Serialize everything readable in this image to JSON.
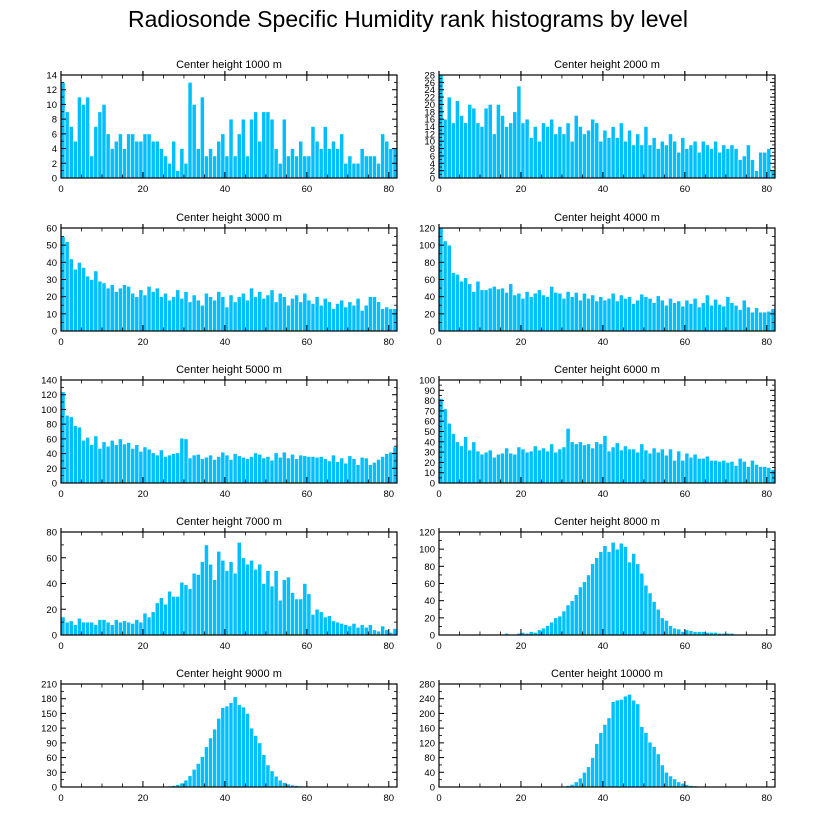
{
  "title": "Radiosonde Specific Humidity rank histograms by level",
  "bar_color": "#00bfff",
  "bar_edge_color": "#ffffff",
  "chart_data": [
    {
      "type": "bar",
      "title": "Center height 1000 m",
      "xlim": [
        0,
        82
      ],
      "ylim": [
        0,
        14
      ],
      "xticks": [
        0,
        20,
        40,
        60,
        80
      ],
      "yticks": [
        0,
        2,
        4,
        6,
        8,
        10,
        12,
        14
      ],
      "x_start": 0,
      "values": [
        13,
        9,
        7,
        5,
        11,
        10,
        11,
        3,
        7,
        9,
        10,
        6,
        4,
        5,
        6,
        4,
        6,
        6,
        5,
        5,
        6,
        6,
        5,
        5,
        4,
        3,
        2,
        5,
        1,
        4,
        2,
        13,
        10,
        4,
        11,
        3,
        4,
        3,
        5,
        6,
        3,
        8,
        3,
        6,
        8,
        3,
        8,
        9,
        5,
        9,
        9,
        8,
        4,
        2,
        8,
        3,
        4,
        3,
        5,
        3,
        3,
        7,
        5,
        4,
        7,
        4,
        5,
        4,
        6,
        2,
        3,
        2,
        2,
        4,
        3,
        3,
        3,
        2,
        6,
        5,
        4,
        4
      ]
    },
    {
      "type": "bar",
      "title": "Center height 2000 m",
      "xlim": [
        0,
        82
      ],
      "ylim": [
        0,
        28
      ],
      "xticks": [
        0,
        20,
        40,
        60,
        80
      ],
      "yticks": [
        0,
        2,
        4,
        6,
        8,
        10,
        12,
        14,
        16,
        18,
        20,
        22,
        24,
        26,
        28
      ],
      "x_start": 0,
      "values": [
        28,
        16,
        22,
        15,
        21,
        17,
        15,
        20,
        19,
        15,
        14,
        19,
        20,
        12,
        20,
        17,
        14,
        15,
        18,
        25,
        15,
        16,
        11,
        14,
        10,
        15,
        14,
        16,
        12,
        14,
        12,
        15,
        10,
        17,
        14,
        12,
        13,
        16,
        15,
        10,
        13,
        11,
        14,
        11,
        15,
        10,
        13,
        9,
        12,
        9,
        14,
        9,
        11,
        8,
        10,
        9,
        12,
        10,
        7,
        11,
        8,
        9,
        10,
        7,
        10,
        9,
        8,
        10,
        7,
        9,
        8,
        9,
        8,
        5,
        6,
        9,
        5,
        2,
        7,
        7,
        8,
        2
      ]
    },
    {
      "type": "bar",
      "title": "Center height 3000 m",
      "xlim": [
        0,
        82
      ],
      "ylim": [
        0,
        60
      ],
      "xticks": [
        0,
        20,
        40,
        60,
        80
      ],
      "yticks": [
        0,
        10,
        20,
        30,
        40,
        50,
        60
      ],
      "x_start": 0,
      "values": [
        55,
        52,
        42,
        36,
        40,
        37,
        32,
        30,
        35,
        29,
        28,
        25,
        27,
        23,
        25,
        27,
        26,
        22,
        20,
        24,
        21,
        26,
        23,
        25,
        20,
        22,
        18,
        20,
        24,
        19,
        23,
        17,
        21,
        18,
        15,
        22,
        20,
        18,
        23,
        20,
        14,
        21,
        17,
        20,
        22,
        18,
        25,
        20,
        23,
        19,
        21,
        24,
        17,
        22,
        20,
        15,
        19,
        21,
        17,
        22,
        18,
        16,
        20,
        15,
        19,
        17,
        13,
        16,
        18,
        14,
        17,
        15,
        19,
        12,
        15,
        20,
        20,
        17,
        13,
        14,
        13,
        13
      ]
    },
    {
      "type": "bar",
      "title": "Center height 4000 m",
      "xlim": [
        0,
        82
      ],
      "ylim": [
        0,
        120
      ],
      "xticks": [
        0,
        20,
        40,
        60,
        80
      ],
      "yticks": [
        0,
        20,
        40,
        60,
        80,
        100,
        120
      ],
      "x_start": 0,
      "values": [
        120,
        105,
        100,
        68,
        66,
        58,
        62,
        55,
        46,
        58,
        48,
        48,
        50,
        52,
        49,
        50,
        45,
        55,
        42,
        44,
        38,
        46,
        40,
        44,
        48,
        42,
        40,
        52,
        45,
        44,
        38,
        46,
        40,
        45,
        36,
        44,
        38,
        42,
        35,
        40,
        36,
        38,
        44,
        35,
        42,
        38,
        40,
        32,
        36,
        43,
        40,
        38,
        33,
        41,
        36,
        30,
        38,
        33,
        35,
        29,
        36,
        32,
        38,
        28,
        33,
        42,
        30,
        37,
        31,
        29,
        40,
        33,
        30,
        25,
        36,
        28,
        22,
        27,
        22,
        22,
        23,
        26
      ]
    },
    {
      "type": "bar",
      "title": "Center height 5000 m",
      "xlim": [
        0,
        82
      ],
      "ylim": [
        0,
        140
      ],
      "xticks": [
        0,
        20,
        40,
        60,
        80
      ],
      "yticks": [
        0,
        20,
        40,
        60,
        80,
        100,
        120,
        140
      ],
      "x_start": 0,
      "values": [
        124,
        92,
        90,
        78,
        76,
        58,
        62,
        52,
        64,
        47,
        56,
        50,
        58,
        52,
        60,
        53,
        55,
        47,
        52,
        43,
        49,
        46,
        41,
        38,
        45,
        36,
        38,
        40,
        41,
        61,
        60,
        34,
        38,
        39,
        33,
        35,
        38,
        32,
        36,
        42,
        38,
        32,
        40,
        37,
        35,
        33,
        36,
        41,
        39,
        34,
        36,
        31,
        41,
        35,
        42,
        34,
        39,
        33,
        38,
        37,
        36,
        36,
        35,
        36,
        33,
        30,
        38,
        29,
        34,
        27,
        37,
        33,
        25,
        35,
        34,
        25,
        28,
        32,
        36,
        40,
        42,
        49
      ]
    },
    {
      "type": "bar",
      "title": "Center height 6000 m",
      "xlim": [
        0,
        82
      ],
      "ylim": [
        0,
        100
      ],
      "xticks": [
        0,
        20,
        40,
        60,
        80
      ],
      "yticks": [
        0,
        10,
        20,
        30,
        40,
        50,
        60,
        70,
        80,
        90,
        100
      ],
      "x_start": 0,
      "values": [
        82,
        72,
        58,
        48,
        40,
        36,
        45,
        32,
        40,
        31,
        28,
        30,
        32,
        25,
        28,
        29,
        34,
        29,
        28,
        35,
        33,
        30,
        31,
        36,
        32,
        34,
        31,
        38,
        30,
        33,
        35,
        53,
        40,
        38,
        40,
        37,
        38,
        34,
        40,
        38,
        46,
        31,
        35,
        39,
        32,
        36,
        33,
        33,
        30,
        38,
        32,
        29,
        34,
        30,
        33,
        27,
        33,
        22,
        31,
        22,
        29,
        25,
        28,
        24,
        24,
        26,
        22,
        22,
        21,
        22,
        20,
        21,
        17,
        24,
        21,
        16,
        22,
        18,
        16,
        16,
        15,
        13
      ]
    },
    {
      "type": "bar",
      "title": "Center height 7000 m",
      "xlim": [
        0,
        82
      ],
      "ylim": [
        0,
        80
      ],
      "xticks": [
        0,
        20,
        40,
        60,
        80
      ],
      "yticks": [
        0,
        20,
        40,
        60,
        80
      ],
      "x_start": 0,
      "values": [
        14,
        10,
        11,
        8,
        13,
        10,
        10,
        10,
        8,
        12,
        12,
        10,
        8,
        12,
        10,
        11,
        10,
        9,
        12,
        10,
        17,
        14,
        18,
        25,
        29,
        24,
        34,
        30,
        30,
        41,
        39,
        36,
        48,
        47,
        57,
        70,
        55,
        43,
        65,
        58,
        50,
        57,
        48,
        72,
        60,
        55,
        58,
        51,
        55,
        40,
        50,
        38,
        50,
        27,
        43,
        45,
        33,
        28,
        28,
        40,
        32,
        16,
        20,
        18,
        14,
        15,
        11,
        10,
        9,
        8,
        7,
        9,
        6,
        8,
        6,
        8,
        4,
        3,
        7,
        4,
        2,
        5
      ]
    },
    {
      "type": "bar",
      "title": "Center height 8000 m",
      "xlim": [
        0,
        82
      ],
      "ylim": [
        0,
        120
      ],
      "xticks": [
        0,
        20,
        40,
        60,
        80
      ],
      "yticks": [
        0,
        20,
        40,
        60,
        80,
        100,
        120
      ],
      "x_start": 0,
      "values": [
        0,
        0,
        0,
        0,
        0,
        0,
        0,
        0,
        1,
        0,
        0,
        0,
        1,
        0,
        1,
        0,
        2,
        1,
        1,
        2,
        3,
        2,
        4,
        3,
        6,
        8,
        11,
        15,
        20,
        22,
        28,
        35,
        40,
        47,
        56,
        62,
        70,
        83,
        90,
        97,
        104,
        97,
        108,
        100,
        107,
        103,
        85,
        95,
        83,
        72,
        58,
        49,
        39,
        30,
        20,
        17,
        11,
        8,
        7,
        4,
        6,
        5,
        4,
        4,
        4,
        3,
        3,
        3,
        2,
        2,
        2,
        2,
        1,
        1,
        1,
        1,
        1,
        0,
        1,
        0,
        0,
        0
      ]
    },
    {
      "type": "bar",
      "title": "Center height 9000 m",
      "xlim": [
        0,
        82
      ],
      "ylim": [
        0,
        210
      ],
      "xticks": [
        0,
        20,
        40,
        60,
        80
      ],
      "yticks": [
        0,
        30,
        60,
        90,
        120,
        150,
        180,
        210
      ],
      "x_start": 0,
      "values": [
        0,
        0,
        0,
        0,
        0,
        0,
        0,
        0,
        0,
        0,
        0,
        0,
        0,
        0,
        0,
        0,
        0,
        0,
        0,
        0,
        0,
        0,
        0,
        0,
        1,
        1,
        2,
        3,
        5,
        8,
        14,
        23,
        36,
        48,
        62,
        82,
        100,
        118,
        140,
        162,
        165,
        172,
        184,
        168,
        163,
        150,
        120,
        105,
        90,
        66,
        45,
        33,
        22,
        14,
        9,
        6,
        4,
        3,
        2,
        1,
        1,
        1,
        0,
        0,
        0,
        0,
        0,
        0,
        0,
        0,
        0,
        0,
        0,
        0,
        0,
        0,
        0,
        0,
        0,
        0,
        0,
        0
      ]
    },
    {
      "type": "bar",
      "title": "Center height 10000 m",
      "xlim": [
        0,
        82
      ],
      "ylim": [
        0,
        280
      ],
      "xticks": [
        0,
        20,
        40,
        60,
        80
      ],
      "yticks": [
        0,
        40,
        80,
        120,
        160,
        200,
        240,
        280
      ],
      "x_start": 0,
      "values": [
        0,
        0,
        0,
        0,
        0,
        0,
        0,
        0,
        0,
        0,
        0,
        0,
        0,
        0,
        0,
        0,
        0,
        0,
        0,
        0,
        0,
        0,
        0,
        0,
        0,
        0,
        0,
        0,
        0,
        1,
        2,
        4,
        7,
        14,
        24,
        40,
        55,
        80,
        118,
        148,
        170,
        188,
        232,
        236,
        238,
        247,
        252,
        236,
        226,
        164,
        148,
        122,
        110,
        90,
        60,
        40,
        30,
        22,
        14,
        10,
        6,
        4,
        3,
        2,
        1,
        1,
        1,
        0,
        0,
        0,
        0,
        0,
        0,
        0,
        0,
        0,
        0,
        0,
        0,
        0,
        0,
        0
      ]
    }
  ]
}
